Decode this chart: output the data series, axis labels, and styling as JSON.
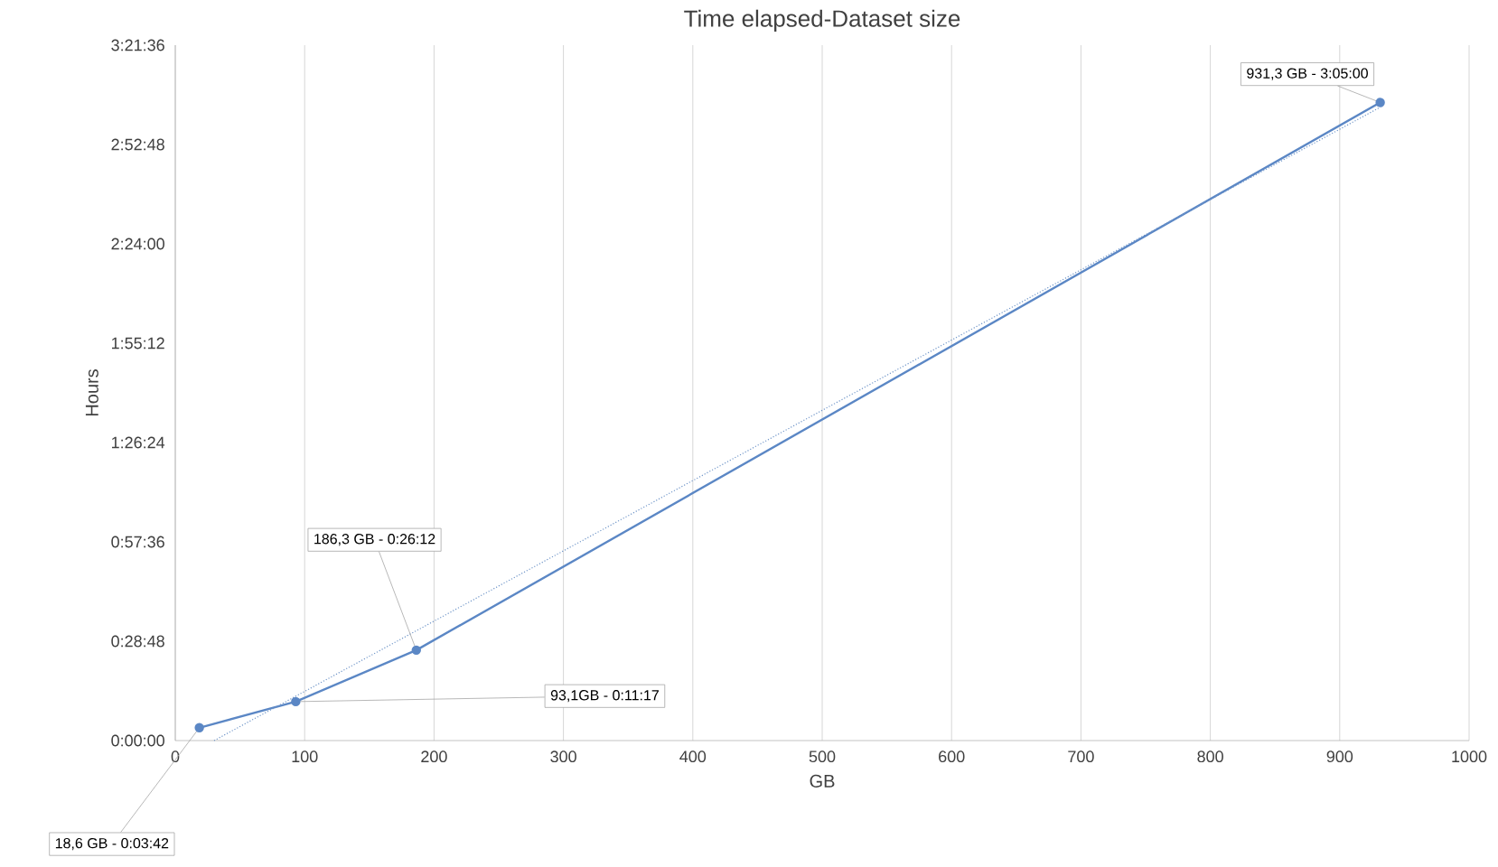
{
  "chart_data": {
    "type": "line",
    "title": "Time elapsed-Dataset size",
    "xlabel": "GB",
    "ylabel": "Hours",
    "xlim": [
      0,
      1000
    ],
    "xticks": [
      0,
      100,
      200,
      300,
      400,
      500,
      600,
      700,
      800,
      900,
      1000
    ],
    "ylim": [
      0,
      3.36
    ],
    "yticks": [
      {
        "value": 0,
        "label": "0:00:00"
      },
      {
        "value": 0.48,
        "label": "0:28:48"
      },
      {
        "value": 0.96,
        "label": "0:57:36"
      },
      {
        "value": 1.44,
        "label": "1:26:24"
      },
      {
        "value": 1.92,
        "label": "1:55:12"
      },
      {
        "value": 2.4,
        "label": "2:24:00"
      },
      {
        "value": 2.88,
        "label": "2:52:48"
      },
      {
        "value": 3.36,
        "label": "3:21:36"
      }
    ],
    "grid": "x",
    "marker": "circle",
    "line_style": "solid",
    "series": [
      {
        "color": "#5b87c5",
        "x": [
          18.6,
          93.1,
          186.3,
          931.3
        ],
        "values": [
          0.062,
          0.188,
          0.437,
          3.083
        ]
      },
      {
        "type": "line",
        "color": "#6f95c8",
        "line_style": "dotted",
        "marker": "none",
        "x": [
          30,
          931.3
        ],
        "values": [
          0.0,
          3.06
        ]
      }
    ],
    "annotations": [
      {
        "text": "18,6 GB - 0:03:42",
        "x": 18.6,
        "y": 0.0617
      },
      {
        "text": "93,1GB -  0:11:17",
        "x": 93.1,
        "y": 0.1881
      },
      {
        "text": "186,3 GB - 0:26:12",
        "x": 186.3,
        "y": 0.4367
      },
      {
        "text": "931,3 GB - 3:05:00",
        "x": 931.3,
        "y": 3.0833
      }
    ]
  }
}
